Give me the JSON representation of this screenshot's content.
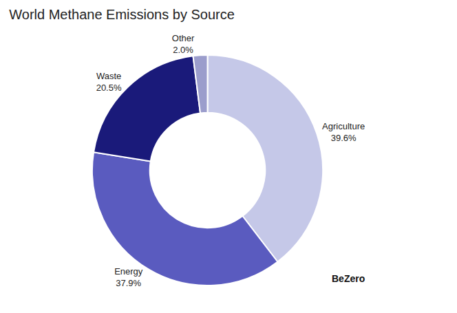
{
  "chart_data": {
    "type": "pie",
    "title": "World Methane Emissions by Source",
    "categories": [
      "Agriculture",
      "Energy",
      "Waste",
      "Other"
    ],
    "values": [
      39.6,
      37.9,
      20.5,
      2.0
    ],
    "value_labels": [
      "39.6%",
      "37.9%",
      "20.5%",
      "2.0%"
    ],
    "colors": [
      "#c5c8e8",
      "#5a5bbf",
      "#1a1a7a",
      "#9b9dcc"
    ],
    "data_labels": true,
    "annotations": [
      "BeZero"
    ]
  }
}
